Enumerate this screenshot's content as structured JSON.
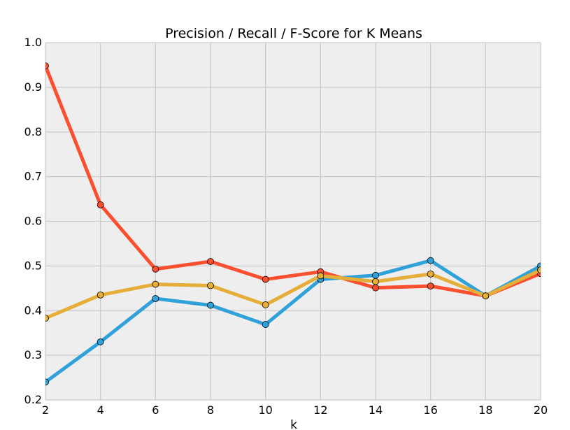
{
  "chart_data": {
    "type": "line",
    "title": "Precision / Recall / F-Score for K Means",
    "xlabel": "k",
    "ylabel": "",
    "xlim": [
      2,
      20
    ],
    "ylim": [
      0.2,
      1.0
    ],
    "x": [
      2,
      4,
      6,
      8,
      10,
      12,
      14,
      16,
      18,
      20
    ],
    "xticks": [
      "2",
      "4",
      "6",
      "8",
      "10",
      "12",
      "14",
      "16",
      "18",
      "20"
    ],
    "yticks": [
      "0.2",
      "0.3",
      "0.4",
      "0.5",
      "0.6",
      "0.7",
      "0.8",
      "0.9",
      "1.0"
    ],
    "grid": true,
    "legend": "none",
    "background_color": "#eeeeee",
    "grid_color": "#cbcbcb",
    "series": [
      {
        "color": "#fc4f30",
        "values": [
          0.948,
          0.637,
          0.493,
          0.51,
          0.47,
          0.487,
          0.451,
          0.455,
          0.433,
          0.483
        ]
      },
      {
        "color": "#30a2da",
        "values": [
          0.24,
          0.33,
          0.427,
          0.412,
          0.369,
          0.47,
          0.479,
          0.512,
          0.433,
          0.5
        ]
      },
      {
        "color": "#e5ae38",
        "values": [
          0.383,
          0.435,
          0.459,
          0.456,
          0.413,
          0.478,
          0.465,
          0.482,
          0.433,
          0.491
        ]
      }
    ]
  }
}
